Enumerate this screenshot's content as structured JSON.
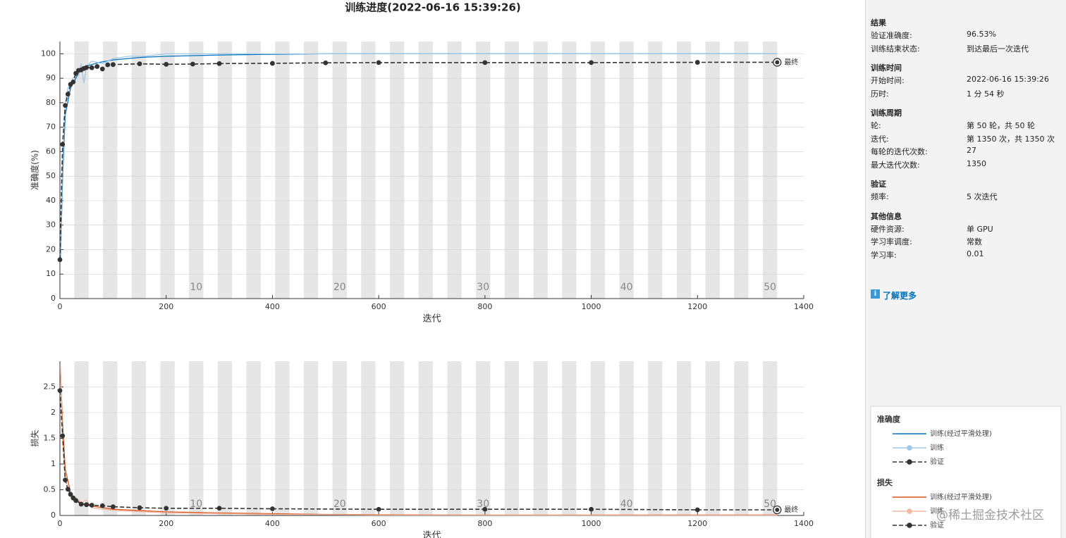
{
  "title": "训练进度(2022-06-16 15:39:26)",
  "chart_data": [
    {
      "type": "line",
      "y_label": "准确度(%)",
      "x_label": "迭代",
      "legend_title": "准确度",
      "annotation": "最终",
      "xlim": [
        0,
        1400
      ],
      "xticks": [
        0,
        200,
        400,
        600,
        800,
        1000,
        1200,
        1400
      ],
      "ylim": [
        0,
        105
      ],
      "yticks": [
        0,
        10,
        20,
        30,
        40,
        50,
        60,
        70,
        80,
        90,
        100
      ],
      "grid": true,
      "epochs": 50,
      "epoch_iterations": 27,
      "epoch_labels": [
        10,
        20,
        30,
        40,
        50
      ],
      "series": [
        {
          "name": "训练(经过平滑处理)",
          "color": "#0072bd",
          "dash": false,
          "marker": false,
          "x": [
            1,
            5,
            10,
            20,
            30,
            40,
            50,
            75,
            100,
            150,
            200,
            300,
            400,
            500,
            1350
          ],
          "values": [
            15,
            50,
            75,
            86,
            90,
            94,
            95,
            96.5,
            97.5,
            98.5,
            99,
            99.5,
            99.8,
            100,
            100
          ]
        },
        {
          "name": "训练",
          "color": "#9fc8e8",
          "dash": false,
          "marker": false,
          "x": [
            1,
            5,
            10,
            15,
            20,
            25,
            30,
            35,
            40,
            45,
            50,
            60,
            80,
            100,
            130,
            160,
            200,
            300,
            1350
          ],
          "values": [
            15,
            55,
            80,
            86,
            88,
            90,
            92,
            91,
            96,
            88,
            95,
            97,
            96,
            98,
            99,
            99,
            100,
            100,
            100
          ]
        },
        {
          "name": "验证",
          "color": "#333333",
          "dash": true,
          "marker": true,
          "x": [
            0,
            5,
            10,
            15,
            20,
            25,
            30,
            35,
            40,
            45,
            50,
            60,
            70,
            80,
            90,
            100,
            150,
            200,
            250,
            300,
            400,
            500,
            600,
            800,
            1000,
            1200,
            1350
          ],
          "values": [
            15.9,
            63,
            78.9,
            83.5,
            87.5,
            88.5,
            92,
            93.2,
            93.4,
            94,
            94.4,
            94.3,
            94.8,
            93.8,
            95.5,
            95.6,
            95.9,
            95.7,
            95.8,
            96,
            96.1,
            96.3,
            96.4,
            96.4,
            96.4,
            96.5,
            96.53
          ]
        }
      ]
    },
    {
      "type": "line",
      "y_label": "损失",
      "x_label": "迭代",
      "legend_title": "损失",
      "annotation": "最终",
      "xlim": [
        0,
        1400
      ],
      "xticks": [
        0,
        200,
        400,
        600,
        800,
        1000,
        1200,
        1400
      ],
      "ylim": [
        0,
        3
      ],
      "yticks": [
        0,
        0.5,
        1,
        1.5,
        2,
        2.5
      ],
      "grid": true,
      "epochs": 50,
      "epoch_iterations": 27,
      "epoch_labels": [
        10,
        20,
        30,
        40,
        50
      ],
      "series": [
        {
          "name": "训练(经过平滑处理)",
          "color": "#d95319",
          "dash": false,
          "marker": false,
          "x": [
            1,
            5,
            10,
            20,
            30,
            50,
            100,
            200,
            300,
            500,
            800,
            1350
          ],
          "values": [
            2.8,
            1.8,
            0.9,
            0.45,
            0.3,
            0.2,
            0.12,
            0.07,
            0.05,
            0.02,
            0.01,
            0.01
          ]
        },
        {
          "name": "训练",
          "color": "#f4b8a2",
          "dash": false,
          "marker": false,
          "x": [
            1,
            5,
            10,
            20,
            30,
            40,
            50,
            60,
            80,
            100,
            200,
            400,
            600,
            1350
          ],
          "values": [
            2.9,
            1.5,
            0.7,
            0.4,
            0.35,
            0.25,
            0.3,
            0.15,
            0.12,
            0.1,
            0.05,
            0.02,
            0.01,
            0.005
          ]
        },
        {
          "name": "验证",
          "color": "#333333",
          "dash": true,
          "marker": true,
          "x": [
            0,
            5,
            10,
            15,
            20,
            25,
            30,
            40,
            50,
            60,
            80,
            100,
            150,
            200,
            300,
            400,
            600,
            800,
            1000,
            1200,
            1350
          ],
          "values": [
            2.43,
            1.55,
            0.69,
            0.51,
            0.41,
            0.34,
            0.29,
            0.22,
            0.21,
            0.2,
            0.19,
            0.17,
            0.15,
            0.14,
            0.14,
            0.13,
            0.12,
            0.12,
            0.12,
            0.11,
            0.11
          ]
        }
      ]
    }
  ],
  "panel": {
    "sections": [
      {
        "title": "结果",
        "rows": [
          [
            "验证准确度:",
            "96.53%"
          ],
          [
            "训练结束状态:",
            "到达最后一次迭代"
          ]
        ]
      },
      {
        "title": "训练时间",
        "rows": [
          [
            "开始时间:",
            "2022-06-16 15:39:26"
          ],
          [
            "历时:",
            "1 分 54 秒"
          ]
        ]
      },
      {
        "title": "训练周期",
        "rows": [
          [
            "轮:",
            "第 50 轮，共 50 轮"
          ],
          [
            "迭代:",
            "第 1350 次，共 1350 次"
          ],
          [
            "每轮的迭代次数:",
            "27"
          ],
          [
            "最大迭代次数:",
            "1350"
          ]
        ]
      },
      {
        "title": "验证",
        "rows": [
          [
            "频率:",
            "5 次迭代"
          ]
        ]
      },
      {
        "title": "其他信息",
        "rows": [
          [
            "硬件资源:",
            "单 GPU"
          ],
          [
            "学习率调度:",
            "常数"
          ],
          [
            "学习率:",
            "0.01"
          ]
        ]
      }
    ],
    "link": "了解更多"
  },
  "watermark": "@稀土掘金技术社区"
}
